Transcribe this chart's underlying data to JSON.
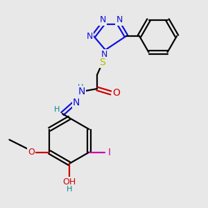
{
  "background_color": "#e8e8e8",
  "colors": {
    "N": "#1010dd",
    "S": "#b8b800",
    "O": "#cc0000",
    "I": "#cc00aa",
    "H": "#008888",
    "C": "#000000",
    "bond": "#000000"
  },
  "figsize": [
    3.0,
    3.0
  ],
  "dpi": 100
}
